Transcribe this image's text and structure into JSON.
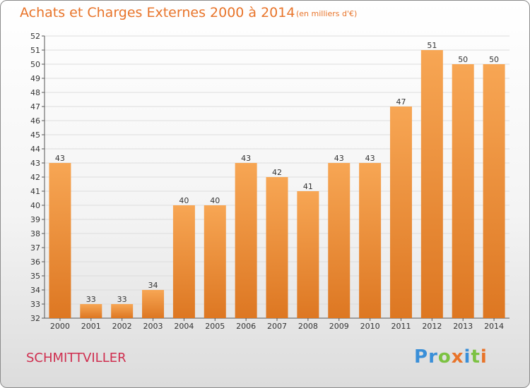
{
  "title": "Achats et Charges Externes 2000 à 2014",
  "subtitle": "(en milliers d'€)",
  "commune": "SCHMITTVILLER",
  "logo": [
    "P",
    "r",
    "o",
    "x",
    "i",
    "t",
    "i"
  ],
  "colors": {
    "bar_top": "#f7a654",
    "bar_bottom": "#dd7722",
    "title": "#e8742a",
    "commune": "#cf2e4f",
    "grid": "#dddddd",
    "axis": "#555555"
  },
  "chart_data": {
    "type": "bar",
    "title": "Achats et Charges Externes 2000 à 2014",
    "subtitle": "(en milliers d'€)",
    "xlabel": "",
    "ylabel": "",
    "categories": [
      "2000",
      "2001",
      "2002",
      "2003",
      "2004",
      "2005",
      "2006",
      "2007",
      "2008",
      "2009",
      "2010",
      "2011",
      "2012",
      "2013",
      "2014"
    ],
    "values": [
      43,
      33,
      33,
      34,
      40,
      40,
      43,
      42,
      41,
      43,
      43,
      47,
      51,
      50,
      50
    ],
    "ylim": [
      32,
      52
    ],
    "yticks": [
      32,
      33,
      34,
      35,
      36,
      37,
      38,
      39,
      40,
      41,
      42,
      43,
      44,
      45,
      46,
      47,
      48,
      49,
      50,
      51,
      52
    ],
    "grid": true,
    "data_labels": true
  }
}
